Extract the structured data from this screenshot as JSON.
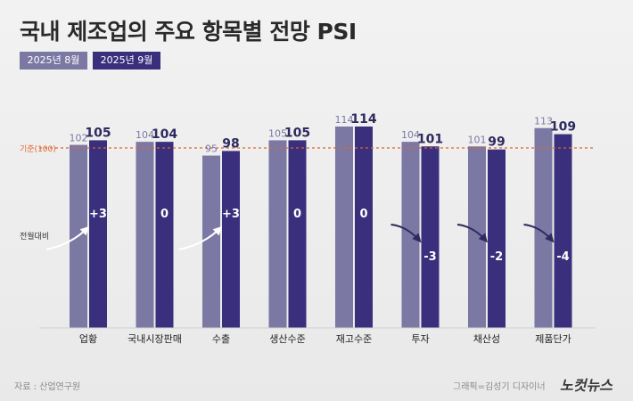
{
  "title": "국내 제조업의 주요 항목별 전망 PSI",
  "legend": [
    "2025년 8월",
    "2025년 9월"
  ],
  "colors": {
    "aug": "#7b78a4",
    "sep": "#3a2f7c",
    "ref": "#e0652a",
    "text_dark": "#2e2a5e"
  },
  "source": "자료 : 산업연구원",
  "credit": "그래픽=김성기 디자이너",
  "logo": "노컷뉴스",
  "chart_data": {
    "type": "bar",
    "categories": [
      "업황",
      "국내시장판매",
      "수출",
      "생산수준",
      "재고수준",
      "투자",
      "채산성",
      "제품단가"
    ],
    "series": [
      {
        "name": "2025년 8월",
        "values": [
          102,
          104,
          95,
          105,
          114,
          104,
          101,
          113
        ]
      },
      {
        "name": "2025년 9월",
        "values": [
          105,
          104,
          98,
          105,
          114,
          101,
          99,
          109
        ]
      }
    ],
    "change_label": "전월대비",
    "changes": [
      "+3",
      "0",
      "+3",
      "0",
      "0",
      "-3",
      "-2",
      "-4"
    ],
    "change_direction": [
      "up",
      "none",
      "up",
      "none",
      "none",
      "down",
      "down",
      "down"
    ],
    "reference": {
      "value": 100,
      "label": "기준(100)"
    },
    "ylim": [
      0,
      114
    ],
    "grid": false
  }
}
